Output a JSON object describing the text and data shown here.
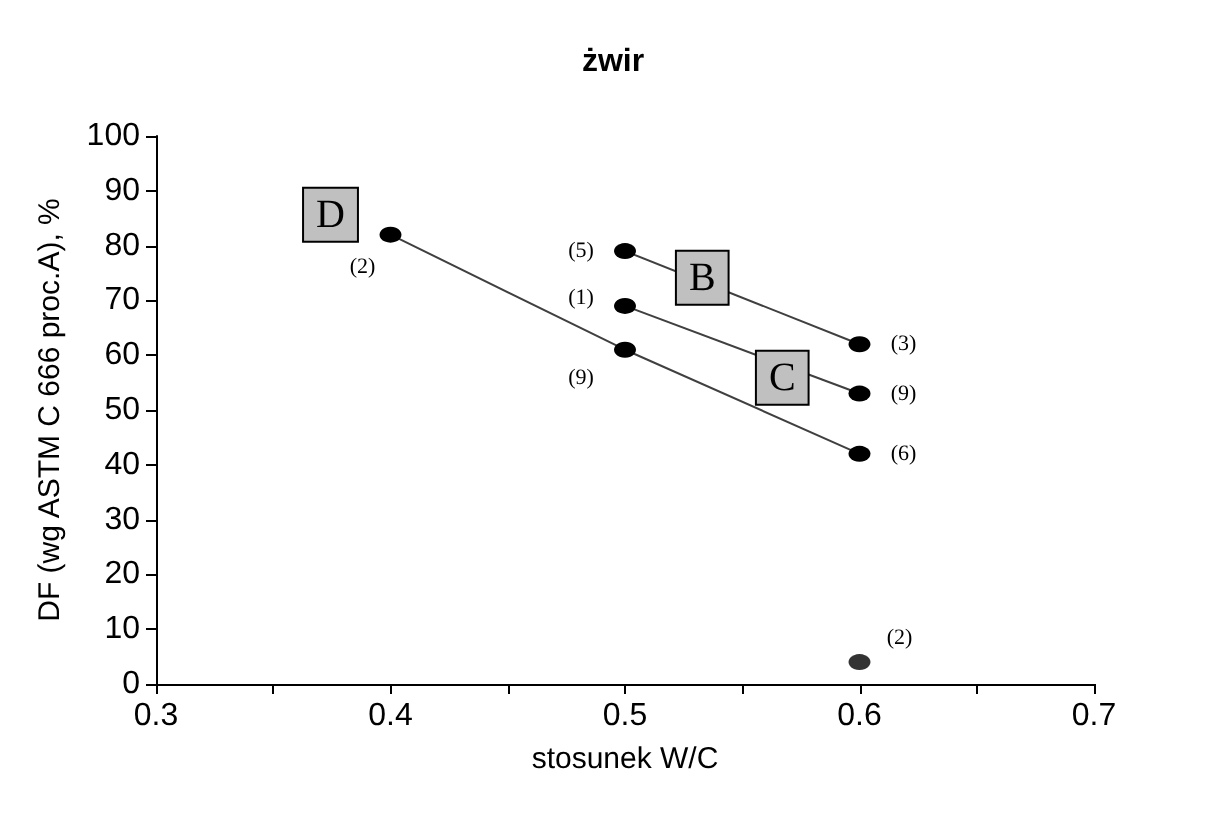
{
  "chart_data": {
    "type": "line",
    "title": "żwir",
    "xlabel": "stosunek W/C",
    "ylabel": "DF (wg ASTM C 666 proc.A), %",
    "xlim": [
      0.3,
      0.7
    ],
    "xticks": [
      0.3,
      {
        "value": 0.35,
        "label": null
      },
      0.4,
      {
        "value": 0.45,
        "label": null
      },
      0.5,
      {
        "value": 0.55,
        "label": null
      },
      0.6,
      {
        "value": 0.65,
        "label": null
      },
      0.7
    ],
    "ylim": [
      0,
      100
    ],
    "yticks": [
      0,
      10,
      20,
      30,
      40,
      50,
      60,
      70,
      80,
      90,
      100
    ],
    "grid": false,
    "legend": false,
    "marker": "circle",
    "line_style": "solid",
    "series": [
      {
        "name": "B",
        "color": "#000000",
        "x": [
          0.5,
          0.6
        ],
        "values": [
          79,
          62
        ]
      },
      {
        "name": "C",
        "color": "#000000",
        "x": [
          0.5,
          0.6
        ],
        "values": [
          69,
          53
        ]
      },
      {
        "name": "D",
        "color": "#000000",
        "x": [
          0.4,
          0.5,
          0.6
        ],
        "values": [
          82,
          61,
          42
        ]
      },
      {
        "type": "scatter",
        "color": "#000000",
        "x": [
          0.6
        ],
        "values": [
          4
        ]
      }
    ],
    "annotations": [
      {
        "text": "(5)",
        "x": 0.5,
        "y": 79
      },
      {
        "text": "(3)",
        "x": 0.6,
        "y": 62
      },
      {
        "text": "(1)",
        "x": 0.5,
        "y": 69
      },
      {
        "text": "(9)",
        "x": 0.6,
        "y": 53
      },
      {
        "text": "(2)",
        "x": 0.4,
        "y": 82
      },
      {
        "text": "(9)",
        "x": 0.5,
        "y": 61
      },
      {
        "text": "(6)",
        "x": 0.6,
        "y": 42
      },
      {
        "text": "(2)",
        "x": 0.6,
        "y": 4
      }
    ]
  }
}
